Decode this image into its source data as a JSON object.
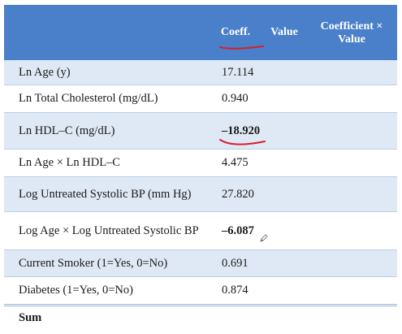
{
  "header": {
    "col_variable": "",
    "col_coeff": "Coeff.",
    "col_value": "Value",
    "col_cv_line1": "Coefficient ×",
    "col_cv_line2": "Value"
  },
  "rows": [
    {
      "label": "Ln Age (y)",
      "coeff": "17.114"
    },
    {
      "label": "Ln Total Cholesterol (mg/dL)",
      "coeff": "0.940"
    },
    {
      "label": "Ln HDL–C (mg/dL)",
      "coeff": "–18.920"
    },
    {
      "label": "Ln Age × Ln HDL–C",
      "coeff": "4.475"
    },
    {
      "label": "Log Untreated Systolic BP (mm Hg)",
      "coeff": "27.820"
    },
    {
      "label": "Log Age × Log Untreated Systolic BP",
      "coeff": "–6.087"
    },
    {
      "label": "Current Smoker (1=Yes, 0=No)",
      "coeff": "0.691"
    },
    {
      "label": "Diabetes (1=Yes, 0=No)",
      "coeff": "0.874"
    }
  ],
  "sum_label": "Sum",
  "colors": {
    "header_bg": "#4a7fc9",
    "shaded_row": "#dfe9f5",
    "annotation_red": "#d4202a"
  },
  "icons": {
    "pencil": "pencil-cursor-icon"
  }
}
